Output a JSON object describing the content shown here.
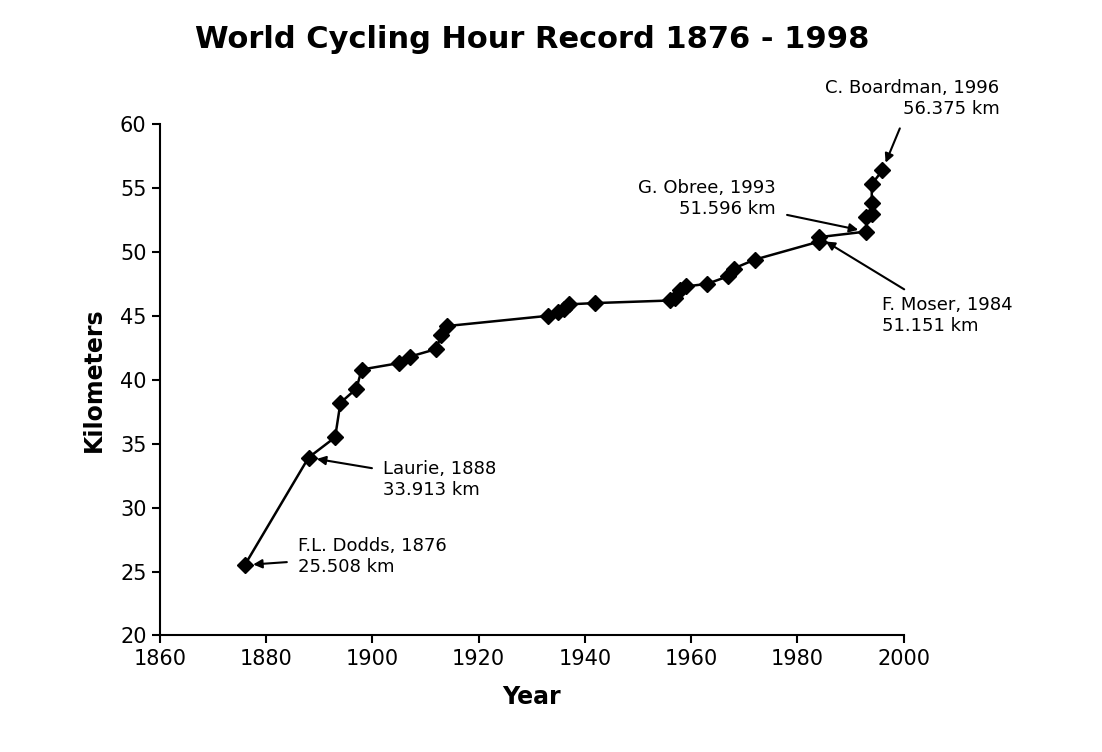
{
  "chart_data": {
    "type": "line",
    "title": "World Cycling Hour Record 1876 - 1998",
    "x_label": "Year",
    "y_label": "Kilometers",
    "x": [
      1876,
      1888,
      1893,
      1894,
      1897,
      1898,
      1905,
      1907,
      1912,
      1913,
      1914,
      1933,
      1935,
      1936,
      1937,
      1942,
      1956,
      1957,
      1958,
      1959,
      1963,
      1967,
      1968,
      1972,
      1984,
      1984,
      1993,
      1993,
      1994,
      1994,
      1994,
      1996
    ],
    "values": [
      25.508,
      33.913,
      35.5,
      38.2,
      39.3,
      40.8,
      41.3,
      41.8,
      42.4,
      43.5,
      44.2,
      45.0,
      45.3,
      45.5,
      45.9,
      46.0,
      46.2,
      46.4,
      47.0,
      47.3,
      47.5,
      48.1,
      48.7,
      49.4,
      50.8,
      51.151,
      51.596,
      52.7,
      53.0,
      53.8,
      55.3,
      56.375
    ],
    "color": "#000000",
    "marker": "diamond",
    "line_style": "solid",
    "xlim": [
      1860,
      2000
    ],
    "xticks": [
      1860,
      1880,
      1900,
      1920,
      1940,
      1960,
      1980,
      2000
    ],
    "ylim": [
      20,
      60
    ],
    "yticks": [
      20,
      25,
      30,
      35,
      40,
      45,
      50,
      55,
      60
    ],
    "grid": false,
    "annotations": [
      {
        "text": "F.L. Dodds, 1876\n25.508 km",
        "x": 1876,
        "y": 25.508
      },
      {
        "text": "Laurie, 1888\n33.913 km",
        "x": 1888,
        "y": 33.913
      },
      {
        "text": "F. Moser, 1984\n51.151 km",
        "x": 1984,
        "y": 51.151
      },
      {
        "text": "G. Obree, 1993\n51.596 km",
        "x": 1993,
        "y": 51.596
      },
      {
        "text": "C. Boardman, 1996\n56.375 km",
        "x": 1996,
        "y": 56.375
      }
    ]
  }
}
